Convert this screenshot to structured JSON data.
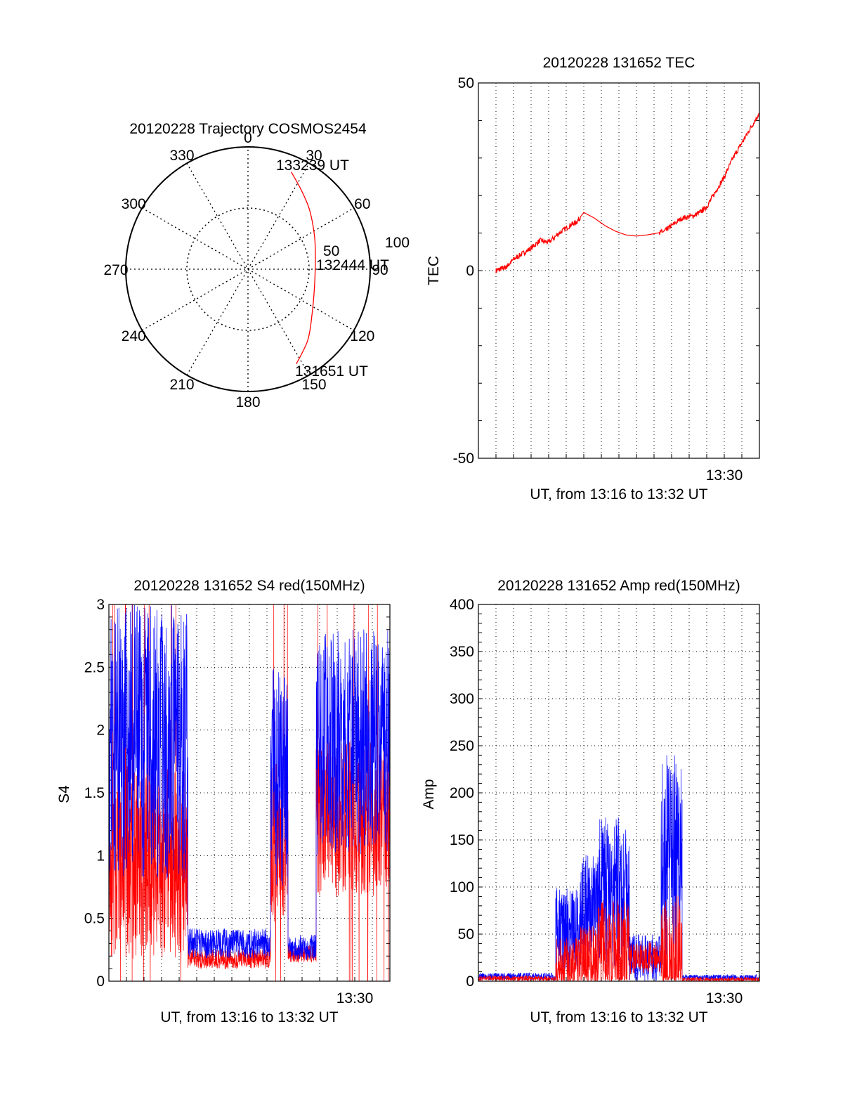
{
  "chart_data": [
    {
      "id": "trajectory",
      "type": "polar",
      "title": "20120228 Trajectory COSMOS2454",
      "azimuth_labels": [
        "0",
        "30",
        "60",
        "90",
        "120",
        "150",
        "180",
        "210",
        "240",
        "270",
        "300",
        "330"
      ],
      "radial_labels": [
        "50",
        "100"
      ],
      "rlim": [
        0,
        100
      ],
      "annotations": {
        "start": "131651 UT",
        "mid": "132444 UT",
        "end": "133239 UT"
      },
      "color": "#ff0000",
      "series": [
        {
          "points": [
            {
              "az": 153,
              "r": 87
            },
            {
              "az": 140,
              "r": 76
            },
            {
              "az": 125,
              "r": 64
            },
            {
              "az": 108,
              "r": 57
            },
            {
              "az": 94,
              "r": 55
            },
            {
              "az": 80,
              "r": 56
            },
            {
              "az": 63,
              "r": 61
            },
            {
              "az": 46,
              "r": 70
            },
            {
              "az": 34,
              "r": 78
            },
            {
              "az": 24,
              "r": 87
            }
          ]
        }
      ]
    },
    {
      "id": "tec",
      "type": "line",
      "title": "20120228 131652 TEC",
      "ylabel": "TEC",
      "xlabel": "UT, from 13:16 to 13:32 UT",
      "x_tick_label": "13:30",
      "yticks": [
        "50",
        "0",
        "-50"
      ],
      "ylim": [
        -50,
        50
      ],
      "xlim_minutes": [
        0,
        16
      ],
      "grid": true,
      "color": "#ff0000",
      "series": [
        {
          "x": [
            1.0,
            1.3,
            1.6,
            2.0,
            2.5,
            3.0,
            3.5,
            4.0,
            4.6,
            5.2,
            5.6,
            6.0,
            6.6,
            7.2,
            7.8,
            8.4,
            9.0,
            9.6,
            10.2,
            10.6,
            11.0,
            11.6,
            12.2,
            12.6,
            13.0,
            13.5,
            14.0,
            14.5,
            15.0,
            15.5,
            16.0
          ],
          "y": [
            0,
            0.5,
            1,
            3,
            4.5,
            6,
            8,
            7.5,
            10,
            12,
            13,
            15.5,
            14,
            12,
            10.5,
            9.5,
            9.2,
            9.5,
            10,
            10.5,
            12,
            14,
            14.5,
            15.5,
            17,
            21,
            25,
            30,
            34,
            38,
            42
          ]
        }
      ]
    },
    {
      "id": "s4",
      "type": "line",
      "title": "20120228 131652 S4 red(150MHz)",
      "ylabel": "S4",
      "xlabel": "UT, from 13:16 to 13:32 UT",
      "x_tick_label": "13:30",
      "yticks": [
        "3",
        "2.5",
        "2",
        "1.5",
        "1",
        "0.5",
        "0"
      ],
      "ylim": [
        0,
        3
      ],
      "xlim_minutes": [
        0,
        16
      ],
      "grid": true,
      "colors": {
        "red": "#ff0000",
        "blue": "#0000ff"
      },
      "segments": [
        {
          "x0": 0.0,
          "x1": 4.5,
          "red": 0.95,
          "blue": 1.9,
          "noise": 1.1
        },
        {
          "x0": 4.5,
          "x1": 9.2,
          "red": 0.18,
          "blue": 0.3,
          "noise": 0.12
        },
        {
          "x0": 9.2,
          "x1": 10.2,
          "red": 1.1,
          "blue": 1.6,
          "noise": 0.9
        },
        {
          "x0": 10.2,
          "x1": 11.8,
          "red": 0.22,
          "blue": 0.27,
          "noise": 0.1
        },
        {
          "x0": 11.8,
          "x1": 16.0,
          "red": 1.3,
          "blue": 1.9,
          "noise": 0.9
        }
      ]
    },
    {
      "id": "amp",
      "type": "line",
      "title": "20120228 131652 Amp red(150MHz)",
      "ylabel": "Amp",
      "xlabel": "UT, from 13:16 to 13:32 UT",
      "x_tick_label": "13:30",
      "yticks": [
        "400",
        "350",
        "300",
        "250",
        "200",
        "150",
        "100",
        "50",
        "0"
      ],
      "ylim": [
        0,
        400
      ],
      "xlim_minutes": [
        0,
        16
      ],
      "grid": true,
      "colors": {
        "red": "#ff0000",
        "blue": "#0000ff"
      },
      "segments": [
        {
          "x0": 0.0,
          "x1": 4.4,
          "blue": 5,
          "red": 3,
          "noise": 4
        },
        {
          "x0": 4.4,
          "x1": 5.8,
          "blue": 55,
          "red": 15,
          "noise": 45
        },
        {
          "x0": 5.8,
          "x1": 6.8,
          "blue": 80,
          "red": 20,
          "noise": 55
        },
        {
          "x0": 6.8,
          "x1": 8.6,
          "blue": 95,
          "red": 30,
          "noise": 80
        },
        {
          "x0": 8.6,
          "x1": 10.4,
          "blue": 25,
          "red": 25,
          "noise": 25
        },
        {
          "x0": 10.4,
          "x1": 11.6,
          "blue": 130,
          "red": 15,
          "noise": 110
        },
        {
          "x0": 11.6,
          "x1": 16.0,
          "blue": 4,
          "red": 2,
          "noise": 3
        }
      ]
    }
  ]
}
